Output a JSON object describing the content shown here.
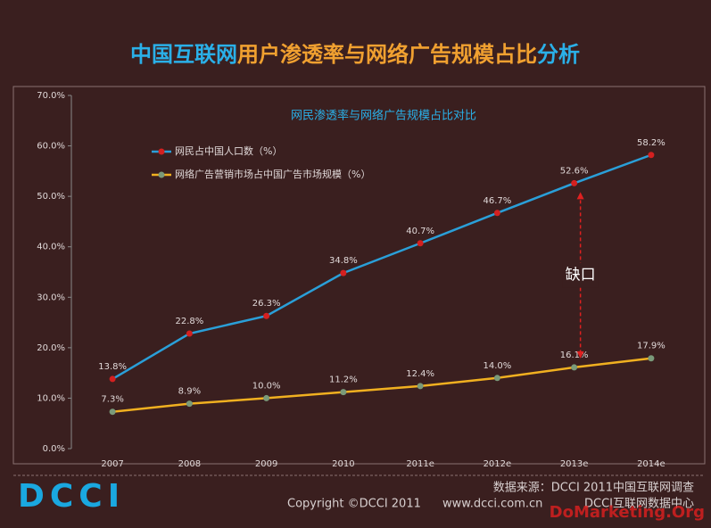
{
  "chart_data": {
    "type": "line",
    "title": [
      "中国互联网",
      "用户渗透率与网络广告规模占比",
      "分析"
    ],
    "subtitle": "网民渗透率与网络广告规模占比对比",
    "categories": [
      "2007",
      "2008",
      "2009",
      "2010",
      "2011e",
      "2012e",
      "2013e",
      "2014e"
    ],
    "series": [
      {
        "name": "网民占中国人口数（%）",
        "color": "#2a9fd8",
        "marker_color": "#d42020",
        "values": [
          13.8,
          22.8,
          26.3,
          34.8,
          40.7,
          46.7,
          52.6,
          58.2
        ],
        "value_labels": [
          "13.8%",
          "22.8%",
          "26.3%",
          "34.8%",
          "40.7%",
          "46.7%",
          "52.6%",
          "58.2%"
        ]
      },
      {
        "name": "网络广告营销市场占中国广告市场规模（%）",
        "color": "#f0b020",
        "marker_color": "#7a9a7a",
        "values": [
          7.3,
          8.9,
          10.0,
          11.2,
          12.4,
          14.0,
          16.1,
          17.9
        ],
        "value_labels": [
          "7.3%",
          "8.9%",
          "10.0%",
          "11.2%",
          "12.4%",
          "14.0%",
          "16.1%",
          "17.9%"
        ]
      }
    ],
    "ylim": [
      0,
      70
    ],
    "yticks": [
      {
        "value": 0,
        "label": "0.0%"
      },
      {
        "value": 10,
        "label": "10.0%"
      },
      {
        "value": 20,
        "label": "20.0%"
      },
      {
        "value": 30,
        "label": "30.0%"
      },
      {
        "value": 40,
        "label": "40.0%"
      },
      {
        "value": 50,
        "label": "50.0%"
      },
      {
        "value": 60,
        "label": "60.0%"
      },
      {
        "value": 70,
        "label": "70.0%"
      }
    ],
    "annotation": "缺口"
  },
  "footer": {
    "logo": "DCCI",
    "copyright": "Copyright ©DCCI 2011",
    "url": "www.dcci.com.cn",
    "source": "数据来源：DCCI 2011中国互联网调查",
    "org": "DCCI互联网数据中心",
    "watermark": "DoMarketing.Org"
  }
}
